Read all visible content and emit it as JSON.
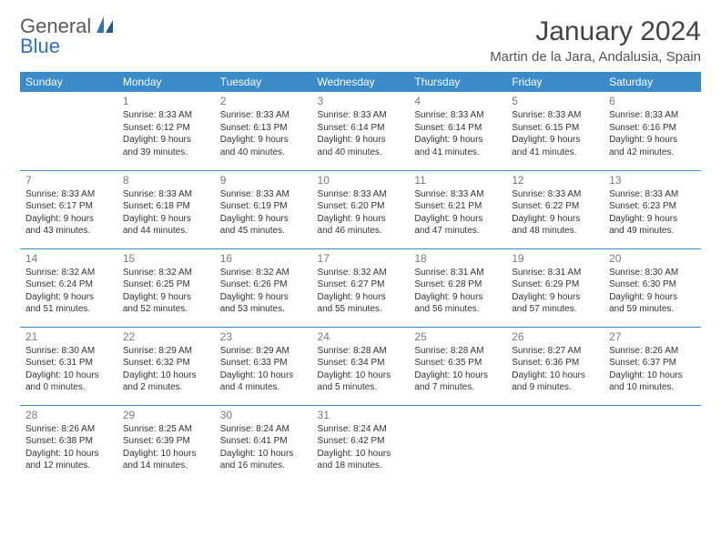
{
  "logo": {
    "part1": "General",
    "part2": "Blue"
  },
  "title": "January 2024",
  "location": "Martin de la Jara, Andalusia, Spain",
  "header_bg": "#3b8bc9",
  "header_fg": "#ffffff",
  "border_color": "#3b8bc9",
  "daynum_color": "#7a7a7a",
  "text_color": "#333333",
  "fontsize_title": 30,
  "fontsize_location": 15,
  "fontsize_dayheader": 12,
  "fontsize_daynum": 12,
  "fontsize_cell": 10,
  "days_of_week": [
    "Sunday",
    "Monday",
    "Tuesday",
    "Wednesday",
    "Thursday",
    "Friday",
    "Saturday"
  ],
  "weeks": [
    [
      null,
      {
        "n": "1",
        "sr": "8:33 AM",
        "ss": "6:12 PM",
        "dl": "9 hours and 39 minutes."
      },
      {
        "n": "2",
        "sr": "8:33 AM",
        "ss": "6:13 PM",
        "dl": "9 hours and 40 minutes."
      },
      {
        "n": "3",
        "sr": "8:33 AM",
        "ss": "6:14 PM",
        "dl": "9 hours and 40 minutes."
      },
      {
        "n": "4",
        "sr": "8:33 AM",
        "ss": "6:14 PM",
        "dl": "9 hours and 41 minutes."
      },
      {
        "n": "5",
        "sr": "8:33 AM",
        "ss": "6:15 PM",
        "dl": "9 hours and 41 minutes."
      },
      {
        "n": "6",
        "sr": "8:33 AM",
        "ss": "6:16 PM",
        "dl": "9 hours and 42 minutes."
      }
    ],
    [
      {
        "n": "7",
        "sr": "8:33 AM",
        "ss": "6:17 PM",
        "dl": "9 hours and 43 minutes."
      },
      {
        "n": "8",
        "sr": "8:33 AM",
        "ss": "6:18 PM",
        "dl": "9 hours and 44 minutes."
      },
      {
        "n": "9",
        "sr": "8:33 AM",
        "ss": "6:19 PM",
        "dl": "9 hours and 45 minutes."
      },
      {
        "n": "10",
        "sr": "8:33 AM",
        "ss": "6:20 PM",
        "dl": "9 hours and 46 minutes."
      },
      {
        "n": "11",
        "sr": "8:33 AM",
        "ss": "6:21 PM",
        "dl": "9 hours and 47 minutes."
      },
      {
        "n": "12",
        "sr": "8:33 AM",
        "ss": "6:22 PM",
        "dl": "9 hours and 48 minutes."
      },
      {
        "n": "13",
        "sr": "8:33 AM",
        "ss": "6:23 PM",
        "dl": "9 hours and 49 minutes."
      }
    ],
    [
      {
        "n": "14",
        "sr": "8:32 AM",
        "ss": "6:24 PM",
        "dl": "9 hours and 51 minutes."
      },
      {
        "n": "15",
        "sr": "8:32 AM",
        "ss": "6:25 PM",
        "dl": "9 hours and 52 minutes."
      },
      {
        "n": "16",
        "sr": "8:32 AM",
        "ss": "6:26 PM",
        "dl": "9 hours and 53 minutes."
      },
      {
        "n": "17",
        "sr": "8:32 AM",
        "ss": "6:27 PM",
        "dl": "9 hours and 55 minutes."
      },
      {
        "n": "18",
        "sr": "8:31 AM",
        "ss": "6:28 PM",
        "dl": "9 hours and 56 minutes."
      },
      {
        "n": "19",
        "sr": "8:31 AM",
        "ss": "6:29 PM",
        "dl": "9 hours and 57 minutes."
      },
      {
        "n": "20",
        "sr": "8:30 AM",
        "ss": "6:30 PM",
        "dl": "9 hours and 59 minutes."
      }
    ],
    [
      {
        "n": "21",
        "sr": "8:30 AM",
        "ss": "6:31 PM",
        "dl": "10 hours and 0 minutes."
      },
      {
        "n": "22",
        "sr": "8:29 AM",
        "ss": "6:32 PM",
        "dl": "10 hours and 2 minutes."
      },
      {
        "n": "23",
        "sr": "8:29 AM",
        "ss": "6:33 PM",
        "dl": "10 hours and 4 minutes."
      },
      {
        "n": "24",
        "sr": "8:28 AM",
        "ss": "6:34 PM",
        "dl": "10 hours and 5 minutes."
      },
      {
        "n": "25",
        "sr": "8:28 AM",
        "ss": "6:35 PM",
        "dl": "10 hours and 7 minutes."
      },
      {
        "n": "26",
        "sr": "8:27 AM",
        "ss": "6:36 PM",
        "dl": "10 hours and 9 minutes."
      },
      {
        "n": "27",
        "sr": "8:26 AM",
        "ss": "6:37 PM",
        "dl": "10 hours and 10 minutes."
      }
    ],
    [
      {
        "n": "28",
        "sr": "8:26 AM",
        "ss": "6:38 PM",
        "dl": "10 hours and 12 minutes."
      },
      {
        "n": "29",
        "sr": "8:25 AM",
        "ss": "6:39 PM",
        "dl": "10 hours and 14 minutes."
      },
      {
        "n": "30",
        "sr": "8:24 AM",
        "ss": "6:41 PM",
        "dl": "10 hours and 16 minutes."
      },
      {
        "n": "31",
        "sr": "8:24 AM",
        "ss": "6:42 PM",
        "dl": "10 hours and 18 minutes."
      },
      null,
      null,
      null
    ]
  ],
  "labels": {
    "sunrise": "Sunrise:",
    "sunset": "Sunset:",
    "daylight": "Daylight:"
  }
}
